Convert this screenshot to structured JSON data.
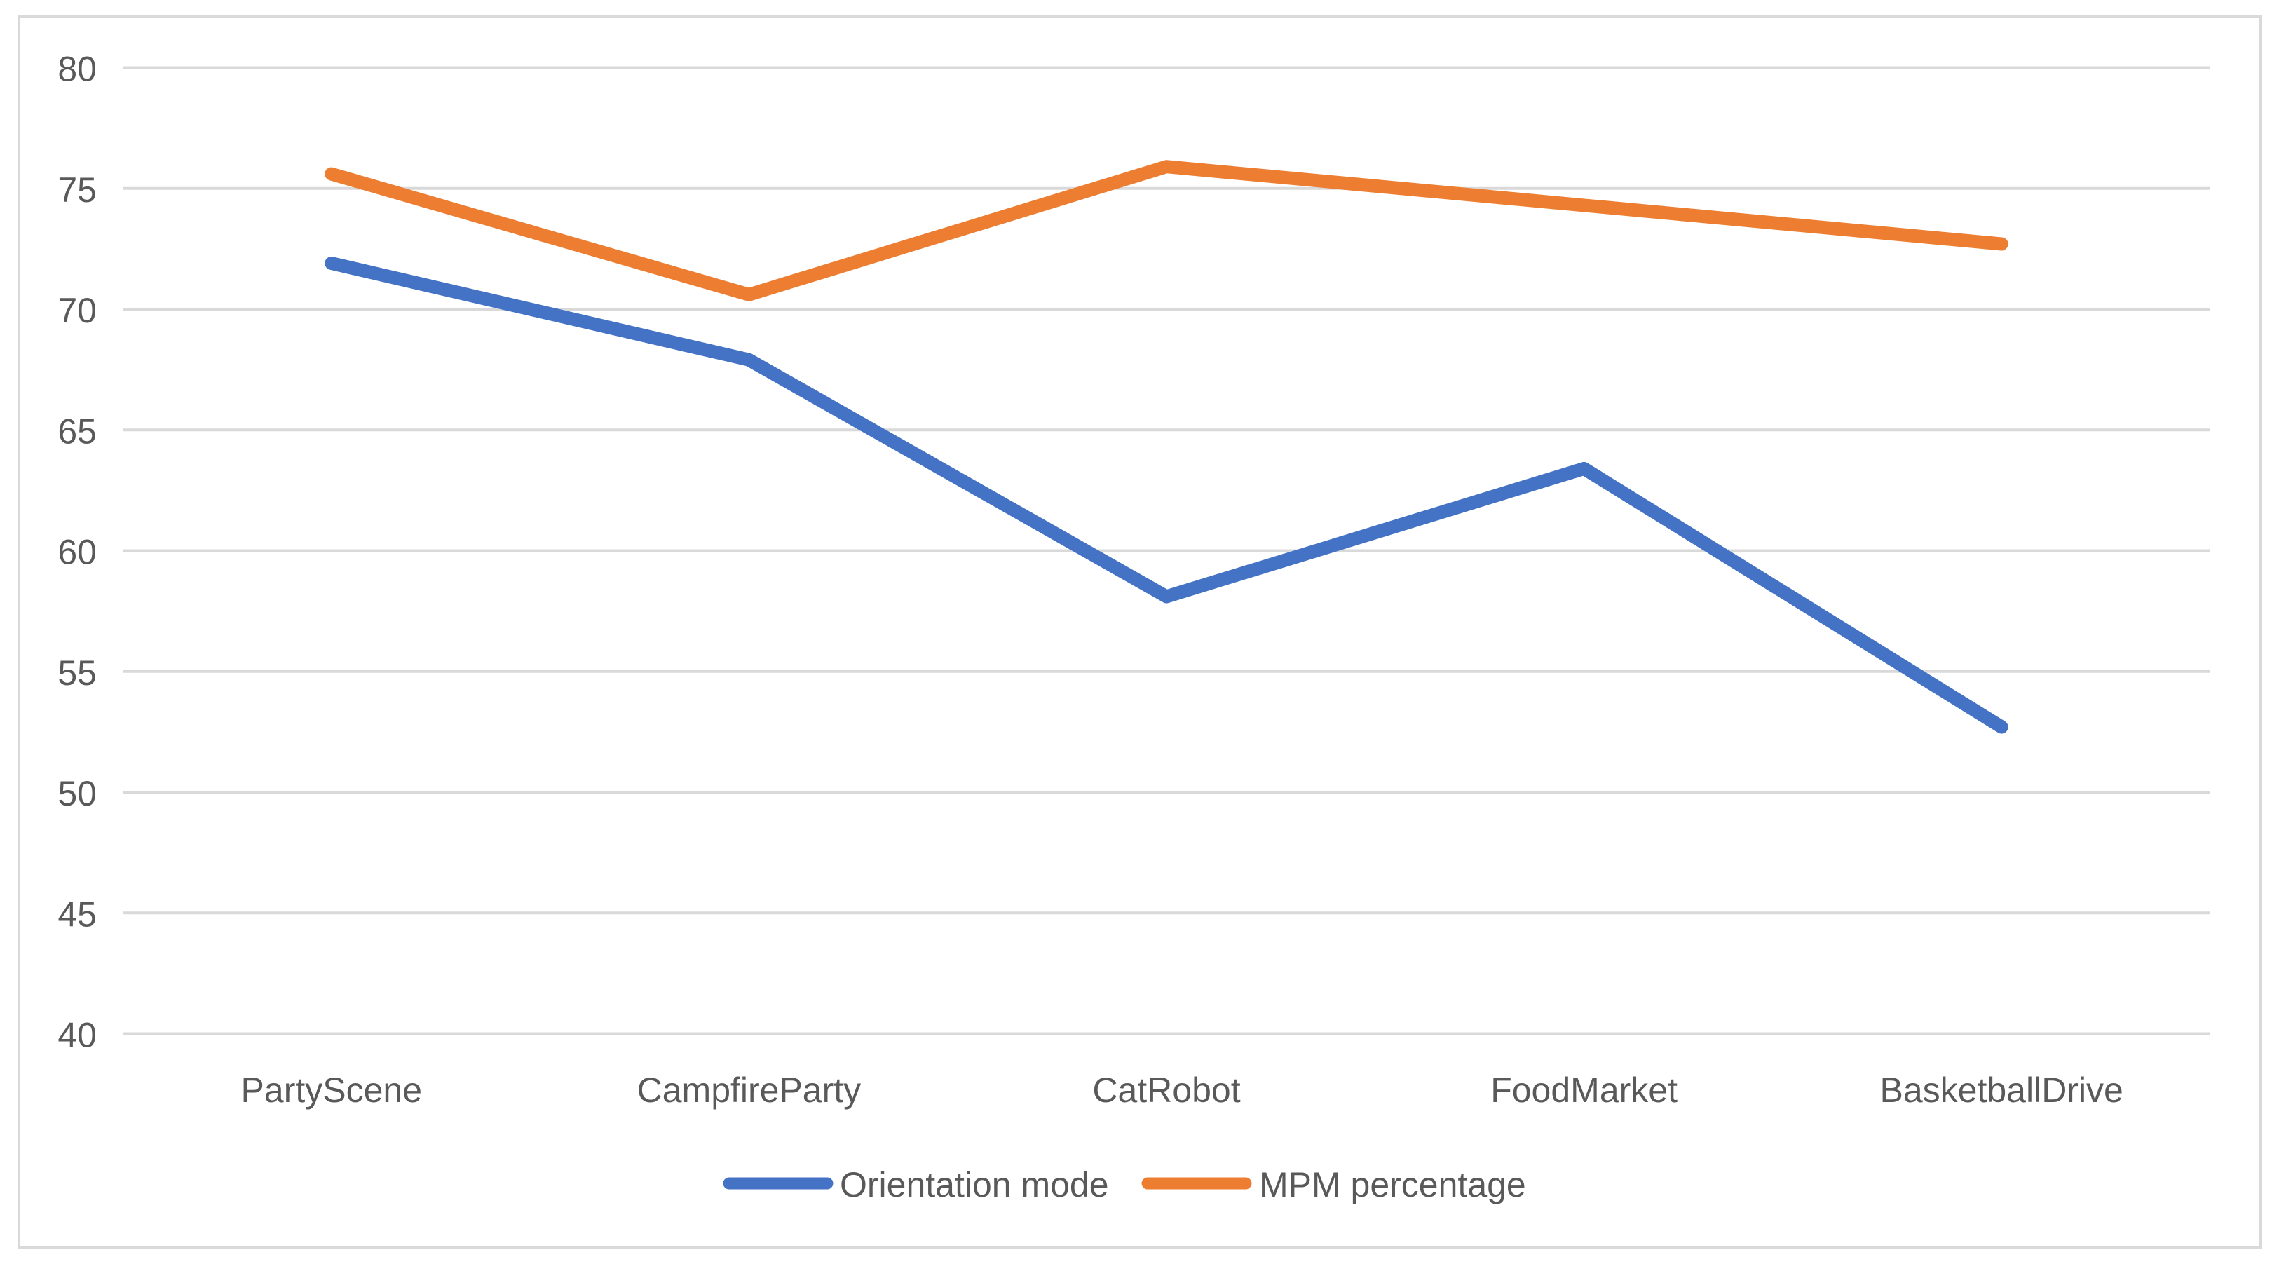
{
  "chart_data": {
    "type": "line",
    "title": "",
    "xlabel": "",
    "ylabel": "",
    "categories": [
      "PartyScene",
      "CampfireParty",
      "CatRobot",
      "FoodMarket",
      "BasketballDrive"
    ],
    "series": [
      {
        "name": "Orientation mode",
        "color": "#4472C4",
        "values": [
          71.9,
          67.9,
          58.1,
          63.4,
          52.7
        ]
      },
      {
        "name": "MPM percentage",
        "color": "#ED7D31",
        "values": [
          75.6,
          70.6,
          75.9,
          74.3,
          72.7
        ]
      }
    ],
    "ylim": [
      40,
      80
    ],
    "yticks": [
      40,
      45,
      50,
      55,
      60,
      65,
      70,
      75,
      80
    ],
    "grid": true,
    "legend_position": "bottom-center",
    "colors": {
      "gridline": "#D9D9D9",
      "chart_border": "#D9D9D9",
      "tick_label": "#595959",
      "legend_label": "#595959",
      "background": "#FFFFFF"
    }
  }
}
